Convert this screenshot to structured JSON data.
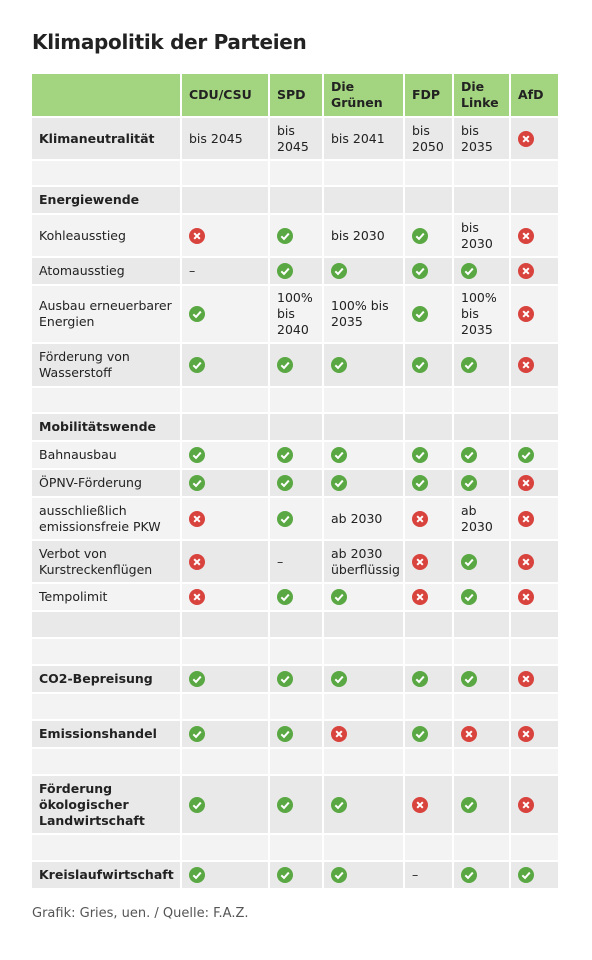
{
  "title": "Klimapolitik der Parteien",
  "table": {
    "parties": [
      "CDU/CSU",
      "SPD",
      "Die Grünen",
      "FDP",
      "Die Linke",
      "AfD"
    ],
    "rows": [
      {
        "label": "Klimaneutralität",
        "section": true,
        "cells": [
          "bis 2045",
          "bis 2045",
          "bis 2041",
          "bis 2050",
          "bis 2035",
          false
        ]
      },
      null,
      {
        "label": "Energiewende",
        "section": true
      },
      {
        "label": "Kohleausstieg",
        "cells": [
          false,
          true,
          "bis 2030",
          true,
          "bis 2030",
          false
        ]
      },
      {
        "label": "Atomausstieg",
        "cells": [
          "–",
          true,
          true,
          true,
          true,
          false
        ]
      },
      {
        "label": "Ausbau erneuerbarer Energien",
        "cells": [
          true,
          "100% bis 2040",
          "100% bis 2035",
          true,
          "100% bis 2035",
          false
        ]
      },
      {
        "label": "Förderung von Wasserstoff",
        "cells": [
          true,
          true,
          true,
          true,
          true,
          false
        ]
      },
      null,
      {
        "label": "Mobilitätswende",
        "section": true
      },
      {
        "label": "Bahnausbau",
        "cells": [
          true,
          true,
          true,
          true,
          true,
          true
        ]
      },
      {
        "label": "ÖPNV-Förderung",
        "cells": [
          true,
          true,
          true,
          true,
          true,
          false
        ]
      },
      {
        "label": "ausschließlich emissionsfreie PKW",
        "cells": [
          false,
          true,
          "ab 2030",
          false,
          "ab 2030",
          false
        ]
      },
      {
        "label": "Verbot von Kurstreckenflügen",
        "cells": [
          false,
          "–",
          "ab 2030 überflüssig",
          false,
          true,
          false
        ]
      },
      {
        "label": "Tempolimit",
        "cells": [
          false,
          true,
          true,
          false,
          true,
          false
        ]
      },
      null,
      null,
      {
        "label": "CO2-Bepreisung",
        "section": true,
        "cells": [
          true,
          true,
          true,
          true,
          true,
          false
        ]
      },
      null,
      {
        "label": "Emissionshandel",
        "section": true,
        "cells": [
          true,
          true,
          false,
          true,
          false,
          false
        ]
      },
      null,
      {
        "label": "Förderung ökologischer Landwirtschaft",
        "section": true,
        "cells": [
          true,
          true,
          true,
          false,
          true,
          false
        ]
      },
      null,
      {
        "label": "Kreislaufwirtschaft",
        "section": true,
        "cells": [
          true,
          true,
          true,
          "–",
          true,
          true
        ]
      }
    ]
  },
  "footer": "Grafik: Gries, uen. / Quelle: F.A.Z."
}
